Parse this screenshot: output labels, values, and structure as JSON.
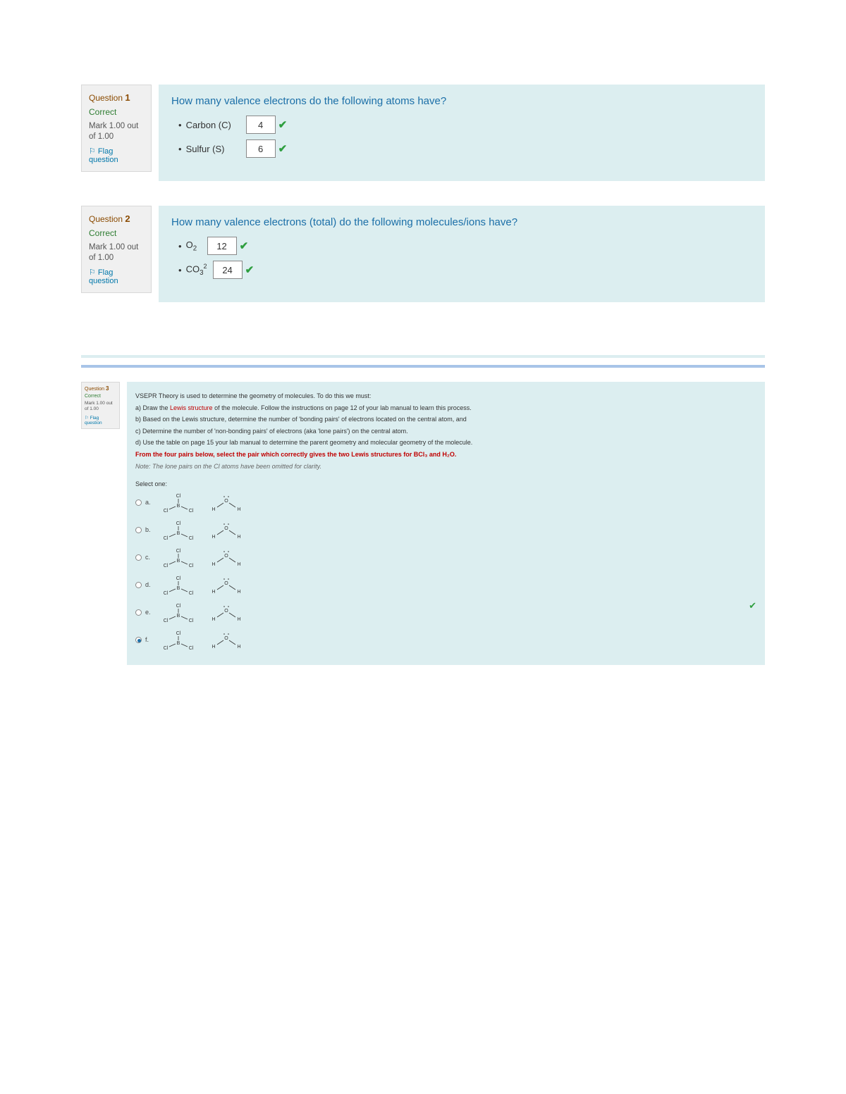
{
  "q1": {
    "number_label": "Question",
    "number": "1",
    "status": "Correct",
    "mark": "Mark 1.00 out of 1.00",
    "flag": "⚐ Flag question",
    "title": "How many valence electrons do the following atoms have?",
    "items": [
      {
        "label": "Carbon (C)",
        "value": "4"
      },
      {
        "label": "Sulfur (S)",
        "value": "6"
      }
    ]
  },
  "q2": {
    "number_label": "Question",
    "number": "2",
    "status": "Correct",
    "mark": "Mark 1.00 out of 1.00",
    "flag": "⚐ Flag question",
    "title": "How many valence electrons (total) do the following molecules/ions have?",
    "items": [
      {
        "formula_html": "O<sub>2</sub>",
        "value": "12"
      },
      {
        "formula_html": "CO<sub>3</sub><sup>2</sup>",
        "value": "24"
      }
    ]
  },
  "q3": {
    "number_label": "Question",
    "number": "3",
    "status": "Correct",
    "mark": "Mark 1.00 out of 1.00",
    "flag": "⚐ Flag question",
    "intro": "VSEPR Theory is used to determine the geometry of molecules. To do this we must:",
    "step_a_pre": "a) Draw the ",
    "step_a_lewis": "Lewis structure",
    "step_a_post": " of the molecule. Follow the instructions on page 12 of your lab manual to learn this process.",
    "step_b": "b) Based on the Lewis structure, determine the number of 'bonding pairs' of electrons located on the central atom, and",
    "step_c": "c) Determine the number of 'non-bonding pairs' of electrons (aka 'lone pairs') on the central atom.",
    "step_d": "d) Use the table on page 15 your lab manual to determine the parent geometry and molecular geometry of the molecule.",
    "red_line": "From the four pairs below, select the pair which correctly gives the two Lewis structures for BCl₃ and H₂O.",
    "note": "Note: The lone pairs on the Cl atoms have been omitted for clarity.",
    "select_one": "Select one:",
    "options": [
      {
        "letter": "a.",
        "selected": false
      },
      {
        "letter": "b.",
        "selected": false
      },
      {
        "letter": "c.",
        "selected": false
      },
      {
        "letter": "d.",
        "selected": false
      },
      {
        "letter": "e.",
        "selected": false
      },
      {
        "letter": "f.",
        "selected": true
      }
    ]
  },
  "colors": {
    "question_bg": "#dceef0",
    "info_bg": "#f0f0f0",
    "title_color": "#1b6fa8",
    "correct_green": "#2e9e3f",
    "red": "#c00000"
  }
}
